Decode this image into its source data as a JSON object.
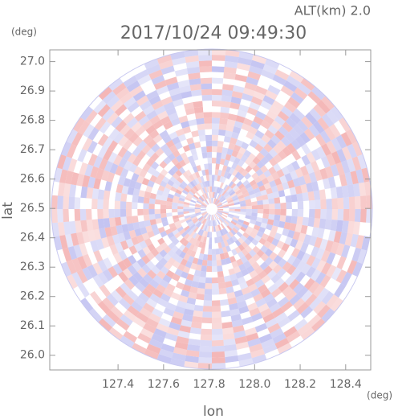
{
  "chart_data": {
    "type": "radar-ppi",
    "title": "2017/10/24 09:49:30",
    "annotation": "ALT(km) 2.0",
    "xlabel": "lon",
    "ylabel": "lat",
    "xunit": "(deg)",
    "yunit": "(deg)",
    "xlim": [
      127.1,
      128.51
    ],
    "ylim": [
      25.95,
      27.04
    ],
    "xticks": [
      127.4,
      127.6,
      127.8,
      {
        "value": 128,
        "label": "128.0"
      },
      128.2,
      128.4
    ],
    "yticks": [
      {
        "value": 26,
        "label": "26.0"
      },
      26.1,
      26.2,
      26.3,
      26.4,
      26.5,
      26.6,
      26.7,
      26.8,
      26.9,
      {
        "value": 27,
        "label": "27.0"
      }
    ]
  }
}
